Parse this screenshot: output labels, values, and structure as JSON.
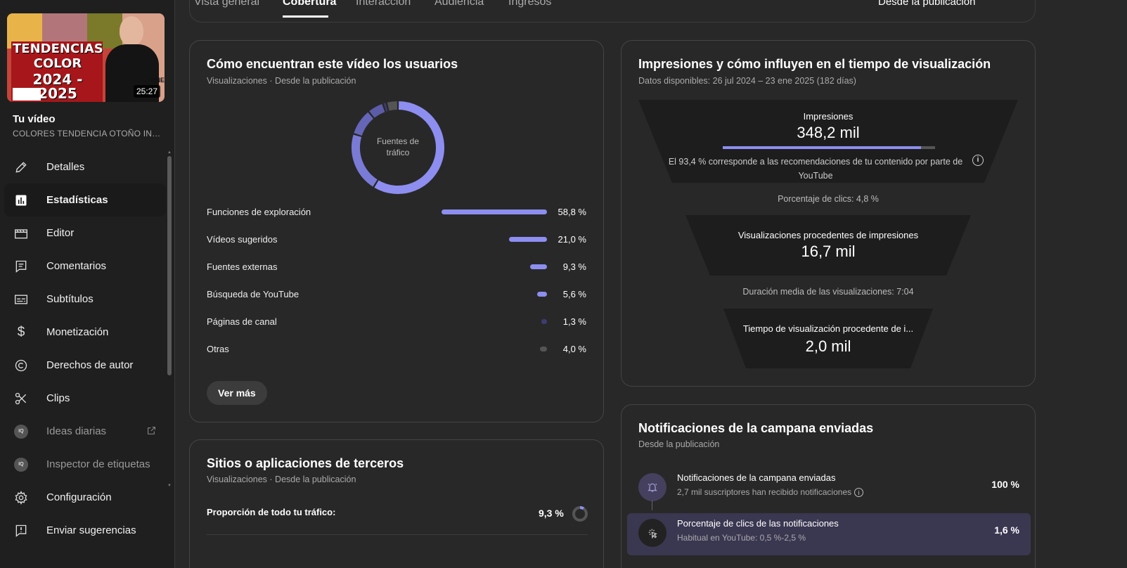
{
  "tabs": {
    "overview": "Vista general",
    "reach": "Cobertura",
    "engagement": "Interacción",
    "audience": "Audiencia",
    "revenue": "Ingresos",
    "date_range": "Desde la publicación"
  },
  "video": {
    "thumb_line1": "TENDENCIAS",
    "thumb_line2": "COLOR",
    "thumb_line3": "2024 - 2025",
    "thumb_corner": "ONE",
    "duration": "25:27",
    "heading": "Tu vídeo",
    "title": "COLORES TENDENCIA OTOÑO INVIE..."
  },
  "sidebar": {
    "items": [
      {
        "label": "Detalles",
        "icon": "pencil-icon"
      },
      {
        "label": "Estadísticas",
        "icon": "analytics-icon"
      },
      {
        "label": "Editor",
        "icon": "editor-icon"
      },
      {
        "label": "Comentarios",
        "icon": "comments-icon"
      },
      {
        "label": "Subtítulos",
        "icon": "subtitles-icon"
      },
      {
        "label": "Monetización",
        "icon": "dollar-icon"
      },
      {
        "label": "Derechos de autor",
        "icon": "copyright-icon"
      },
      {
        "label": "Clips",
        "icon": "scissors-icon"
      },
      {
        "label": "Ideas diarias",
        "icon": "vidiq-icon"
      },
      {
        "label": "Inspector de etiquetas",
        "icon": "vidiq-icon"
      },
      {
        "label": "Configuración",
        "icon": "gear-icon"
      },
      {
        "label": "Enviar sugerencias",
        "icon": "feedback-icon"
      }
    ],
    "vidiq_badge": "IQ"
  },
  "traffic": {
    "title": "Cómo encuentran este vídeo los usuarios",
    "subtitle": "Visualizaciones · Desde la publicación",
    "donut_label_line1": "Fuentes de",
    "donut_label_line2": "tráfico",
    "sources": [
      {
        "name": "Funciones de exploración",
        "pct": "58,8 %",
        "value": 58.8
      },
      {
        "name": "Vídeos sugeridos",
        "pct": "21,0 %",
        "value": 21.0
      },
      {
        "name": "Fuentes externas",
        "pct": "9,3 %",
        "value": 9.3
      },
      {
        "name": "Búsqueda de YouTube",
        "pct": "5,6 %",
        "value": 5.6
      },
      {
        "name": "Páginas de canal",
        "pct": "1,3 %",
        "value": 1.3
      },
      {
        "name": "Otras",
        "pct": "4,0 %",
        "value": 4.0
      }
    ],
    "more_button": "Ver más"
  },
  "third_party": {
    "title": "Sitios o aplicaciones de terceros",
    "subtitle": "Visualizaciones · Desde la publicación",
    "share_label": "Proporción de todo tu tráfico:",
    "share_value": "9,3 %",
    "share_fraction": 0.093
  },
  "funnel": {
    "title": "Impresiones y cómo influyen en el tiempo de visualización",
    "subtitle": "Datos disponibles: 26 jul 2024 – 23 ene 2025 (182 días)",
    "impressions_label": "Impresiones",
    "impressions_value": "348,2 mil",
    "recommended_fraction": 0.934,
    "recommended_note": "El 93,4 % corresponde a las recomendaciones de tu contenido por parte de YouTube",
    "ctr": "Porcentaje de clics: 4,8 %",
    "views_label": "Visualizaciones procedentes de impresiones",
    "views_value": "16,7 mil",
    "avg_duration": "Duración media de las visualizaciones: 7:04",
    "watch_time_label": "Tiempo de visualización procedente de i...",
    "watch_time_value": "2,0 mil"
  },
  "bell": {
    "title": "Notificaciones de la campana enviadas",
    "subtitle": "Desde la publicación",
    "rows": [
      {
        "name": "Notificaciones de la campana enviadas",
        "desc": "2,7 mil suscriptores han recibido notificaciones",
        "pct": "100 %"
      },
      {
        "name": "Porcentaje de clics de las notificaciones",
        "desc": "Habitual en YouTube: 0,5 %-2,5 %",
        "pct": "1,6 %"
      }
    ]
  },
  "colors": {
    "accent": "#8d8ef0",
    "accent_dark": "#5c5ca8",
    "muted_bar": "#3e3c70",
    "gray_bar": "#555555",
    "card_bg": "#282828"
  }
}
